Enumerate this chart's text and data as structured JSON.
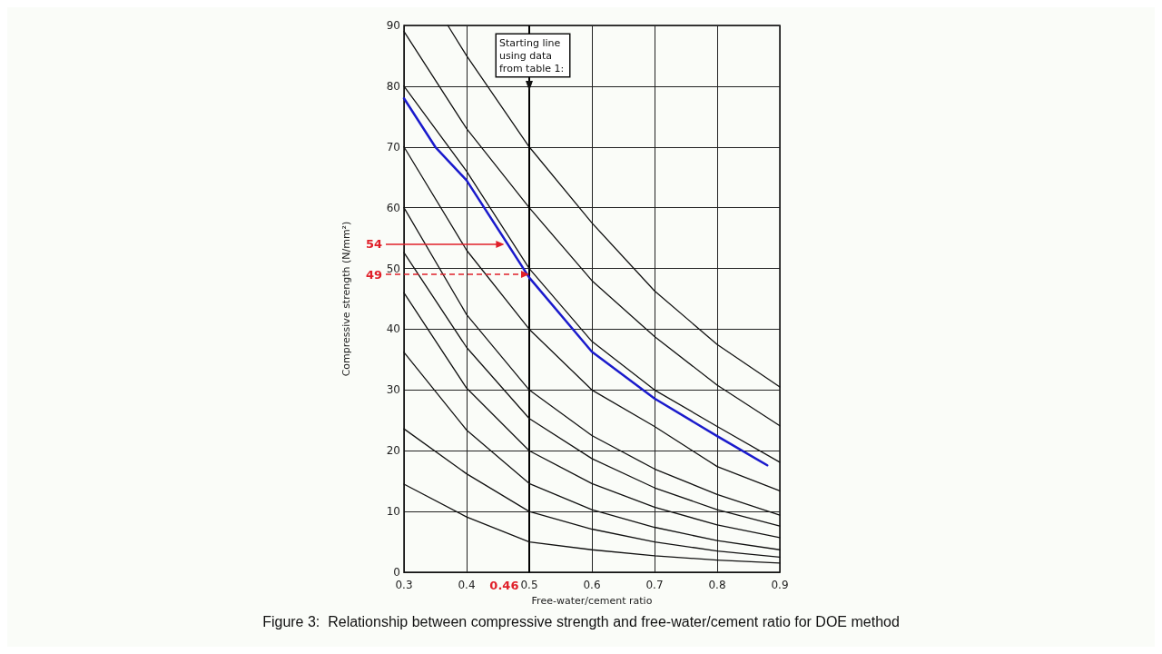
{
  "chart_data": {
    "type": "line",
    "title": "Figure 3:  Relationship between compressive strength and free-water/cement ratio for DOE method",
    "xlabel": "Free-water/cement ratio",
    "ylabel": "Compressive strength (N/mm²)",
    "xlim": [
      0.3,
      0.9
    ],
    "xticks": [
      0.3,
      0.4,
      0.5,
      0.6,
      0.7,
      0.8,
      0.9
    ],
    "ylim": [
      0,
      90
    ],
    "yticks": [
      0,
      10,
      20,
      30,
      40,
      50,
      60,
      70,
      80,
      90
    ],
    "grid": true,
    "marker": "none",
    "line_style": "solid",
    "series": [
      {
        "color": "#111111",
        "x": [
          0.37,
          0.4,
          0.5,
          0.6,
          0.7,
          0.8,
          0.9
        ],
        "values": [
          90,
          85,
          70,
          57.5,
          46.3,
          37.5,
          30.5
        ]
      },
      {
        "color": "#111111",
        "x": [
          0.3,
          0.4,
          0.5,
          0.6,
          0.7,
          0.8,
          0.9
        ],
        "values": [
          89,
          73,
          60,
          48,
          38.8,
          30.8,
          24.1
        ]
      },
      {
        "color": "#111111",
        "x": [
          0.3,
          0.4,
          0.5,
          0.6,
          0.7,
          0.8,
          0.9
        ],
        "values": [
          80,
          66,
          50,
          38,
          30,
          24,
          18.1
        ]
      },
      {
        "color": "#111111",
        "x": [
          0.3,
          0.4,
          0.5,
          0.6,
          0.7,
          0.8,
          0.9
        ],
        "values": [
          70,
          53,
          40,
          30,
          24,
          17.4,
          13.4
        ]
      },
      {
        "color": "#111111",
        "x": [
          0.3,
          0.4,
          0.5,
          0.6,
          0.7,
          0.8,
          0.9
        ],
        "values": [
          60,
          42.4,
          30,
          22.5,
          17,
          12.8,
          9.4
        ]
      },
      {
        "color": "#111111",
        "x": [
          0.3,
          0.4,
          0.5,
          0.6,
          0.7,
          0.8,
          0.9
        ],
        "values": [
          52.6,
          37,
          25.3,
          18.7,
          13.9,
          10.3,
          7.6
        ]
      },
      {
        "color": "#111111",
        "x": [
          0.3,
          0.4,
          0.5,
          0.6,
          0.7,
          0.8,
          0.9
        ],
        "values": [
          46,
          30.3,
          20,
          14.6,
          10.7,
          7.8,
          5.7
        ]
      },
      {
        "color": "#111111",
        "x": [
          0.3,
          0.4,
          0.5,
          0.6,
          0.7,
          0.8,
          0.9
        ],
        "values": [
          36.2,
          23.4,
          14.6,
          10.3,
          7.4,
          5.2,
          3.7
        ]
      },
      {
        "color": "#111111",
        "x": [
          0.3,
          0.4,
          0.5,
          0.6,
          0.7,
          0.8,
          0.9
        ],
        "values": [
          23.6,
          16.2,
          10,
          7.1,
          5,
          3.5,
          2.5
        ]
      },
      {
        "color": "#111111",
        "x": [
          0.3,
          0.4,
          0.5,
          0.6,
          0.7,
          0.8,
          0.9
        ],
        "values": [
          14.5,
          9.1,
          5,
          3.7,
          2.7,
          2,
          1.5
        ]
      },
      {
        "color": "#1a1acc",
        "x": [
          0.3,
          0.35,
          0.4,
          0.5,
          0.6,
          0.7,
          0.8,
          0.88
        ],
        "values": [
          78,
          70,
          64.5,
          48.5,
          36.3,
          28.6,
          22.4,
          17.6
        ]
      }
    ],
    "ref_lines": [
      {
        "axis": "x",
        "value": 0.5,
        "label": "Starting line using data from table 1:",
        "color": "#000000"
      }
    ],
    "annotations": [
      {
        "text": "54",
        "x": 0.46,
        "y": 54
      },
      {
        "text": "49",
        "x": 0.5,
        "y": 49
      },
      "0.46"
    ]
  }
}
